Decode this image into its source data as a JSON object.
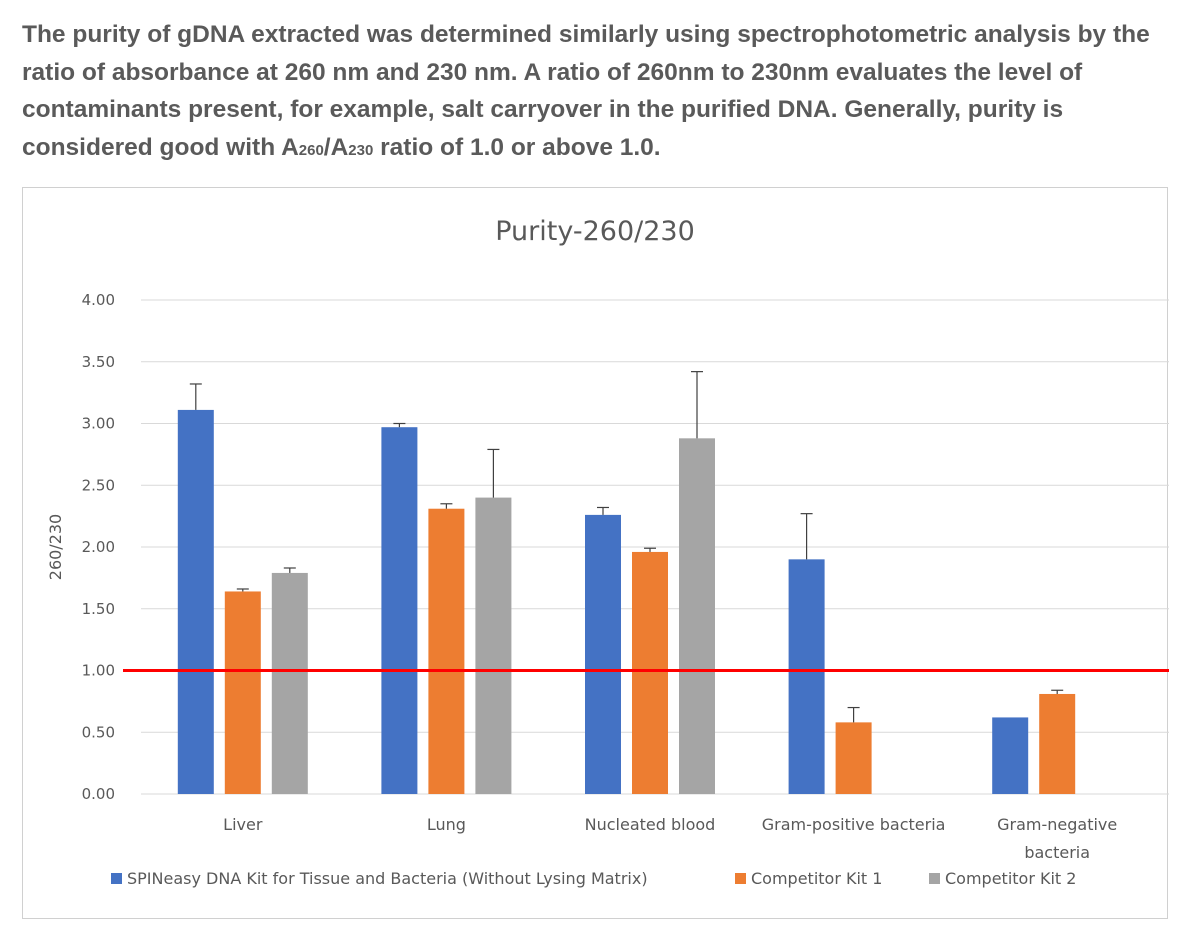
{
  "intro": {
    "part1": "The purity of gDNA extracted was determined similarly using spectrophotometric analysis by the ratio of absorbance at 260 nm and 230 nm. A ratio of 260nm to 230nm evaluates the level of contaminants present, for example, salt carryover in the purified DNA. Generally, purity is considered good with A",
    "sub1": "260",
    "slash": "/A",
    "sub2": "230",
    "part2": " ratio of 1.0 or above 1.0."
  },
  "chart_data": {
    "type": "bar",
    "title": "Purity-260/230",
    "xlabel": "",
    "ylabel": "260/230",
    "ylim": [
      0,
      4
    ],
    "yticks": [
      "0.00",
      "0.50",
      "1.00",
      "1.50",
      "2.00",
      "2.50",
      "3.00",
      "3.50",
      "4.00"
    ],
    "categories": [
      "Liver",
      "Lung",
      "Nucleated blood",
      "Gram-positive bacteria",
      "Gram-negative bacteria"
    ],
    "category_lines": [
      [
        "Liver"
      ],
      [
        "Lung"
      ],
      [
        "Nucleated blood"
      ],
      [
        "Gram-positive bacteria"
      ],
      [
        "Gram-negative",
        "bacteria"
      ]
    ],
    "series": [
      {
        "name": "SPINeasy DNA Kit for Tissue and Bacteria (Without Lysing Matrix)",
        "color": "#4472c4",
        "values": [
          3.11,
          2.97,
          2.26,
          1.9,
          0.62
        ],
        "errors": [
          0.21,
          0.03,
          0.06,
          0.37,
          0.0
        ]
      },
      {
        "name": "Competitor Kit 1",
        "color": "#ed7d31",
        "values": [
          1.64,
          2.31,
          1.96,
          0.58,
          0.81
        ],
        "errors": [
          0.02,
          0.04,
          0.03,
          0.12,
          0.03
        ]
      },
      {
        "name": "Competitor Kit 2",
        "color": "#a5a5a5",
        "values": [
          1.79,
          2.4,
          2.88,
          null,
          null
        ],
        "errors": [
          0.04,
          0.39,
          0.54,
          null,
          null
        ]
      }
    ],
    "reference_line": {
      "value": 1.0,
      "color": "#ff0000"
    },
    "grid": true,
    "legend_position": "bottom"
  }
}
